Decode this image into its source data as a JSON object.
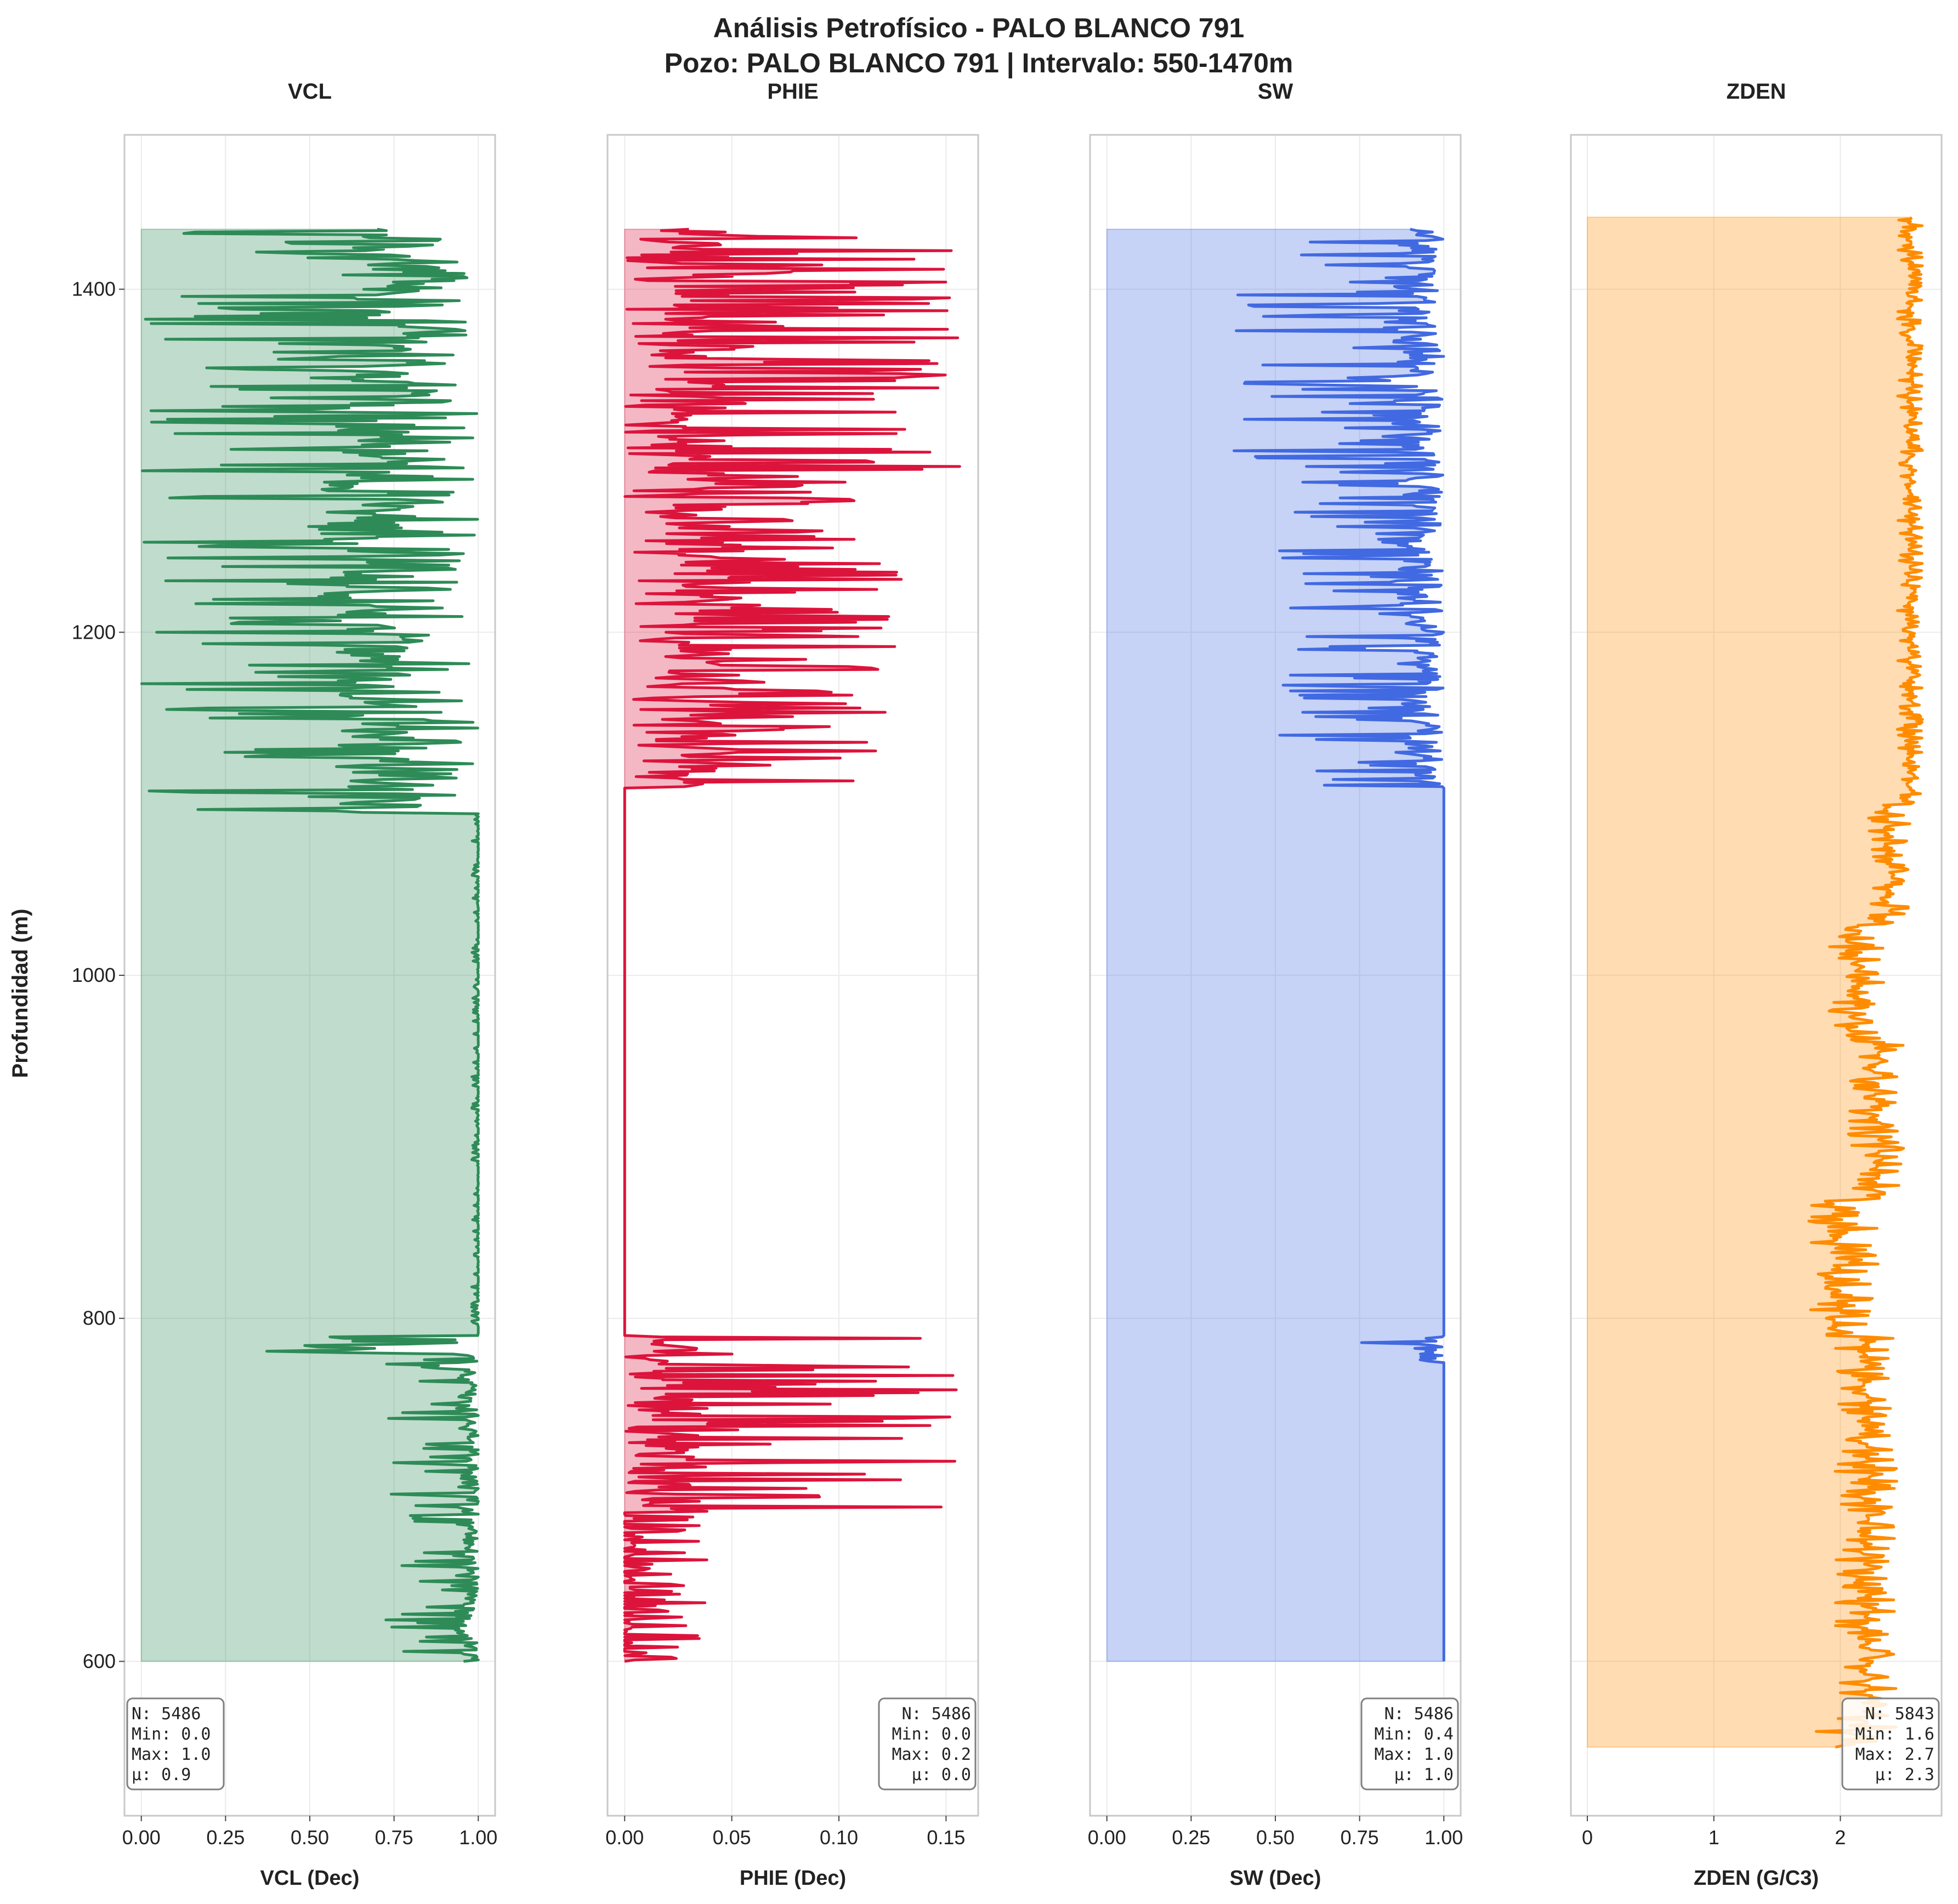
{
  "figure": {
    "title_line1": "Análisis Petrofísico - PALO BLANCO 791",
    "title_line2": "Pozo: PALO BLANCO 791 | Intervalo: 550-1470m",
    "ylabel": "Profundidad (m)",
    "y_ticks": [
      "600",
      "800",
      "1000",
      "1200",
      "1400"
    ]
  },
  "chart_data": [
    {
      "type": "line",
      "name": "VCL",
      "title": "VCL",
      "xlabel": "VCL (Dec)",
      "xlim": [
        -0.05,
        1.05
      ],
      "ylim": [
        510,
        1490
      ],
      "x_ticks": [
        "0.00",
        "0.25",
        "0.50",
        "0.75",
        "1.00"
      ],
      "x_tick_values": [
        0,
        0.25,
        0.5,
        0.75,
        1.0
      ],
      "color": "#2e8b57",
      "fill_color": "#2e8b57",
      "fill_opacity": 0.3,
      "depth_range": [
        600,
        1435
      ],
      "segments": [
        {
          "from": 600,
          "to": 780,
          "min": 0.72,
          "max": 1.0,
          "base": 0.97
        },
        {
          "from": 780,
          "to": 790,
          "min": 0.2,
          "max": 1.0,
          "base": 0.6
        },
        {
          "from": 790,
          "to": 1095,
          "min": 0.98,
          "max": 1.0,
          "base": 1.0
        },
        {
          "from": 1095,
          "to": 1200,
          "min": 0.0,
          "max": 1.0,
          "base": 0.7
        },
        {
          "from": 1200,
          "to": 1300,
          "min": 0.0,
          "max": 1.0,
          "base": 0.65
        },
        {
          "from": 1300,
          "to": 1435,
          "min": 0.0,
          "max": 1.0,
          "base": 0.7
        }
      ],
      "stats": {
        "N": "N: 5486",
        "Min": "Min: 0.0",
        "Max": "Max: 1.0",
        "mu": "µ: 0.9",
        "align": "left"
      }
    },
    {
      "type": "line",
      "name": "PHIE",
      "title": "PHIE",
      "xlabel": "PHIE (Dec)",
      "xlim": [
        -0.008,
        0.165
      ],
      "ylim": [
        510,
        1490
      ],
      "x_ticks": [
        "0.00",
        "0.05",
        "0.10",
        "0.15"
      ],
      "x_tick_values": [
        0,
        0.05,
        0.1,
        0.15
      ],
      "color": "#dc143c",
      "fill_color": "#dc143c",
      "fill_opacity": 0.3,
      "depth_range": [
        600,
        1435
      ],
      "segments": [
        {
          "from": 600,
          "to": 690,
          "min": 0.0,
          "max": 0.04,
          "base": 0.0
        },
        {
          "from": 690,
          "to": 790,
          "min": 0.0,
          "max": 0.157,
          "base": 0.02
        },
        {
          "from": 790,
          "to": 1110,
          "min": 0.0,
          "max": 0.0,
          "base": 0.0
        },
        {
          "from": 1110,
          "to": 1285,
          "min": 0.0,
          "max": 0.13,
          "base": 0.04
        },
        {
          "from": 1285,
          "to": 1435,
          "min": 0.0,
          "max": 0.157,
          "base": 0.03
        }
      ],
      "stats": {
        "N": "N: 5486",
        "Min": "Min: 0.0",
        "Max": "Max: 0.2",
        "mu": "µ: 0.0",
        "align": "right"
      }
    },
    {
      "type": "line",
      "name": "SW",
      "title": "SW",
      "xlabel": "SW (Dec)",
      "xlim": [
        -0.05,
        1.05
      ],
      "ylim": [
        510,
        1490
      ],
      "x_ticks": [
        "0.00",
        "0.25",
        "0.50",
        "0.75",
        "1.00"
      ],
      "x_tick_values": [
        0,
        0.25,
        0.5,
        0.75,
        1.0
      ],
      "color": "#4169e1",
      "fill_color": "#4169e1",
      "fill_opacity": 0.3,
      "depth_range": [
        600,
        1435
      ],
      "segments": [
        {
          "from": 600,
          "to": 775,
          "min": 1.0,
          "max": 1.0,
          "base": 1.0
        },
        {
          "from": 775,
          "to": 790,
          "min": 0.75,
          "max": 1.0,
          "base": 0.95
        },
        {
          "from": 790,
          "to": 1110,
          "min": 1.0,
          "max": 1.0,
          "base": 1.0
        },
        {
          "from": 1110,
          "to": 1290,
          "min": 0.5,
          "max": 1.0,
          "base": 0.92
        },
        {
          "from": 1290,
          "to": 1435,
          "min": 0.35,
          "max": 1.0,
          "base": 0.9
        }
      ],
      "stats": {
        "N": "N: 5486",
        "Min": "Min: 0.4",
        "Max": "Max: 1.0",
        "mu": "µ: 1.0",
        "align": "right"
      }
    },
    {
      "type": "line",
      "name": "ZDEN",
      "title": "ZDEN",
      "xlabel": "ZDEN (G/C3)",
      "xlim": [
        -0.13,
        2.8
      ],
      "ylim": [
        510,
        1490
      ],
      "x_ticks": [
        "0",
        "1",
        "2"
      ],
      "x_tick_values": [
        0,
        1,
        2
      ],
      "color": "#ff8c00",
      "fill_color": "#ff8c00",
      "fill_opacity": 0.3,
      "depth_range": [
        550,
        1442
      ],
      "segments": [
        {
          "from": 550,
          "to": 560,
          "min": 1.6,
          "max": 2.3,
          "base": 2.1
        },
        {
          "from": 560,
          "to": 790,
          "min": 1.95,
          "max": 2.45,
          "base": 2.2
        },
        {
          "from": 790,
          "to": 870,
          "min": 1.75,
          "max": 2.3,
          "base": 1.95
        },
        {
          "from": 870,
          "to": 960,
          "min": 2.05,
          "max": 2.5,
          "base": 2.3
        },
        {
          "from": 960,
          "to": 1030,
          "min": 1.9,
          "max": 2.35,
          "base": 2.1
        },
        {
          "from": 1030,
          "to": 1100,
          "min": 2.2,
          "max": 2.55,
          "base": 2.38
        },
        {
          "from": 1100,
          "to": 1442,
          "min": 2.45,
          "max": 2.65,
          "base": 2.55
        }
      ],
      "stats": {
        "N": "N: 5843",
        "Min": "Min: 1.6",
        "Max": "Max: 2.7",
        "mu": "µ: 2.3",
        "align": "right"
      }
    }
  ]
}
